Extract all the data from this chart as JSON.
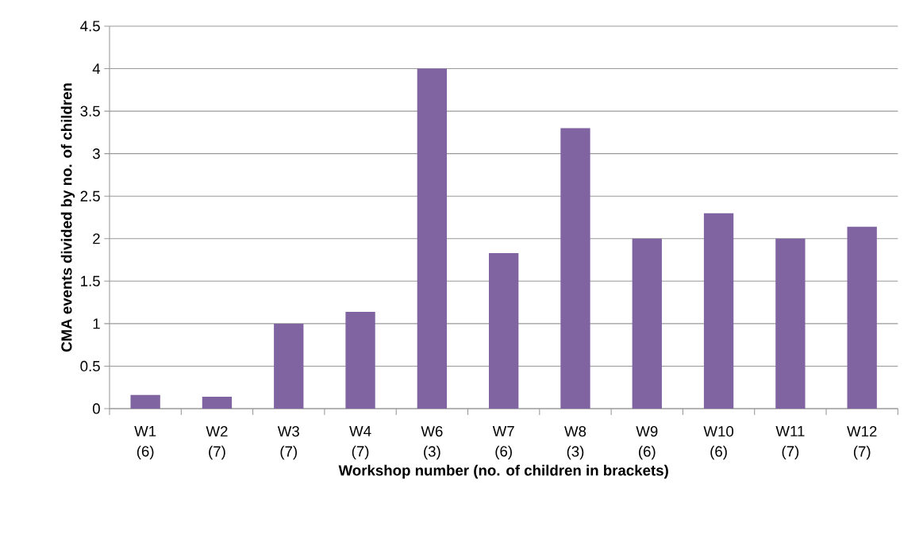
{
  "chart_data": {
    "type": "bar",
    "xlabel": "Workshop number (no. of children in brackets)",
    "ylabel": "CMA events divided by no. of children",
    "categories": [
      "W1 (6)",
      "W2 (7)",
      "W3 (7)",
      "W4 (7)",
      "W6 (3)",
      "W7 (6)",
      "W8 (3)",
      "W9 (6)",
      "W10 (6)",
      "W11 (7)",
      "W12 (7)"
    ],
    "values": [
      0.16,
      0.14,
      1.0,
      1.14,
      4.0,
      1.83,
      3.3,
      2.0,
      2.3,
      2.0,
      2.14
    ],
    "color": "#8064a2",
    "ylim": [
      0,
      4.5
    ],
    "yticks": [
      0,
      0.5,
      1,
      1.5,
      2,
      2.5,
      3,
      3.5,
      4,
      4.5
    ],
    "grid": "y"
  }
}
